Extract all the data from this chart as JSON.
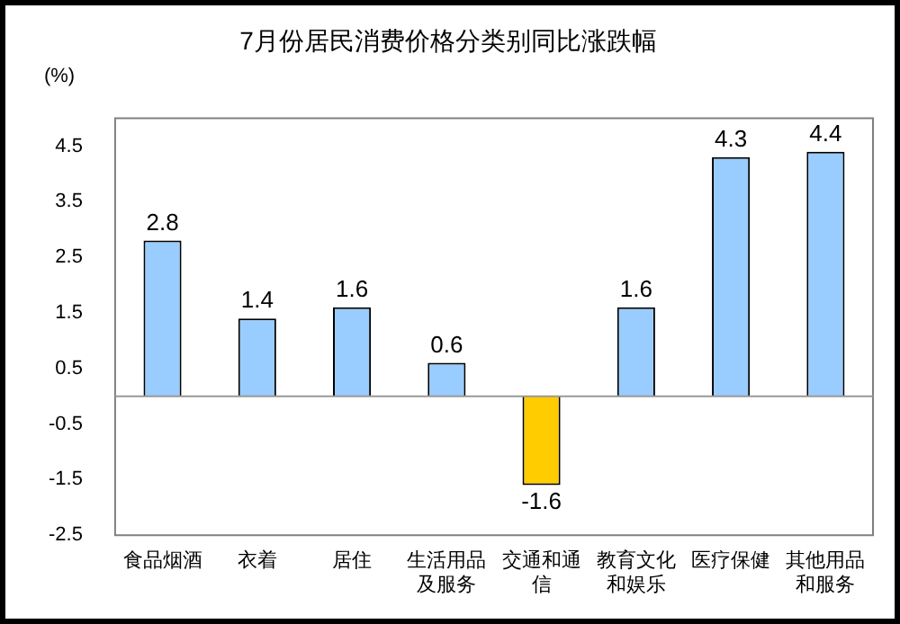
{
  "chart_data": {
    "type": "bar",
    "title": "7月份居民消费价格分类别同比涨跌幅",
    "ylabel": "(%)",
    "categories": [
      "食品烟酒",
      "衣着",
      "居住",
      "生活用品及服务",
      "交通和通信",
      "教育文化和娱乐",
      "医疗保健",
      "其他用品和服务"
    ],
    "values": [
      2.8,
      1.4,
      1.6,
      0.6,
      -1.6,
      1.6,
      4.3,
      4.4
    ],
    "colors": [
      "#99ccff",
      "#99ccff",
      "#99ccff",
      "#99ccff",
      "#ffcc00",
      "#99ccff",
      "#99ccff",
      "#99ccff"
    ],
    "ylim": [
      -2.5,
      5
    ],
    "yticks": [
      -2.5,
      -1.5,
      -0.5,
      0.5,
      1.5,
      2.5,
      3.5,
      4.5
    ],
    "grid": false,
    "legend": false,
    "data_labels": true
  }
}
